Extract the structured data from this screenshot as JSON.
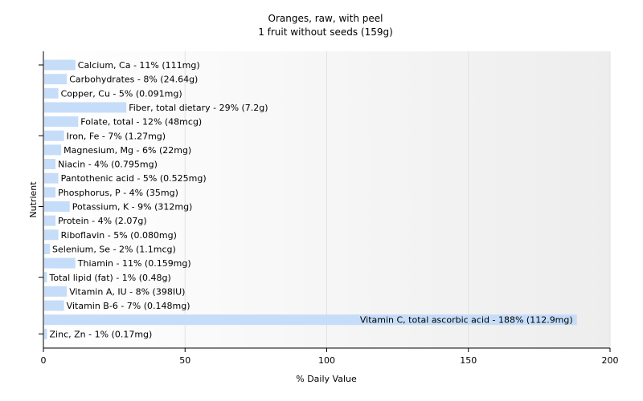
{
  "chart_data": {
    "type": "bar",
    "orientation": "horizontal",
    "title": "Oranges, raw, with peel",
    "subtitle": "1 fruit without seeds (159g)",
    "xlabel": "% Daily Value",
    "ylabel": "Nutrient",
    "xlim": [
      0,
      200
    ],
    "xticks": [
      0,
      50,
      100,
      150,
      200
    ],
    "grid": true,
    "bar_color": "#c6ddf9",
    "categories": [
      "Calcium, Ca",
      "Carbohydrates",
      "Copper, Cu",
      "Fiber, total dietary",
      "Folate, total",
      "Iron, Fe",
      "Magnesium, Mg",
      "Niacin",
      "Pantothenic acid",
      "Phosphorus, P",
      "Potassium, K",
      "Protein",
      "Riboflavin",
      "Selenium, Se",
      "Thiamin",
      "Total lipid (fat)",
      "Vitamin A, IU",
      "Vitamin B-6",
      "Vitamin C, total ascorbic acid",
      "Zinc, Zn"
    ],
    "values": [
      11,
      8,
      5,
      29,
      12,
      7,
      6,
      4,
      5,
      4,
      9,
      4,
      5,
      2,
      11,
      1,
      8,
      7,
      188,
      1
    ],
    "labels": [
      "Calcium, Ca - 11% (111mg)",
      "Carbohydrates - 8% (24.64g)",
      "Copper, Cu - 5% (0.091mg)",
      "Fiber, total dietary - 29% (7.2g)",
      "Folate, total - 12% (48mcg)",
      "Iron, Fe - 7% (1.27mg)",
      "Magnesium, Mg - 6% (22mg)",
      "Niacin - 4% (0.795mg)",
      "Pantothenic acid - 5% (0.525mg)",
      "Phosphorus, P - 4% (35mg)",
      "Potassium, K - 9% (312mg)",
      "Protein - 4% (2.07g)",
      "Riboflavin - 5% (0.080mg)",
      "Selenium, Se - 2% (1.1mcg)",
      "Thiamin - 11% (0.159mg)",
      "Total lipid (fat) - 1% (0.48g)",
      "Vitamin A, IU - 8% (398IU)",
      "Vitamin B-6 - 7% (0.148mg)",
      "Vitamin C, total ascorbic acid - 188% (112.9mg)",
      "Zinc, Zn - 1% (0.17mg)"
    ]
  }
}
